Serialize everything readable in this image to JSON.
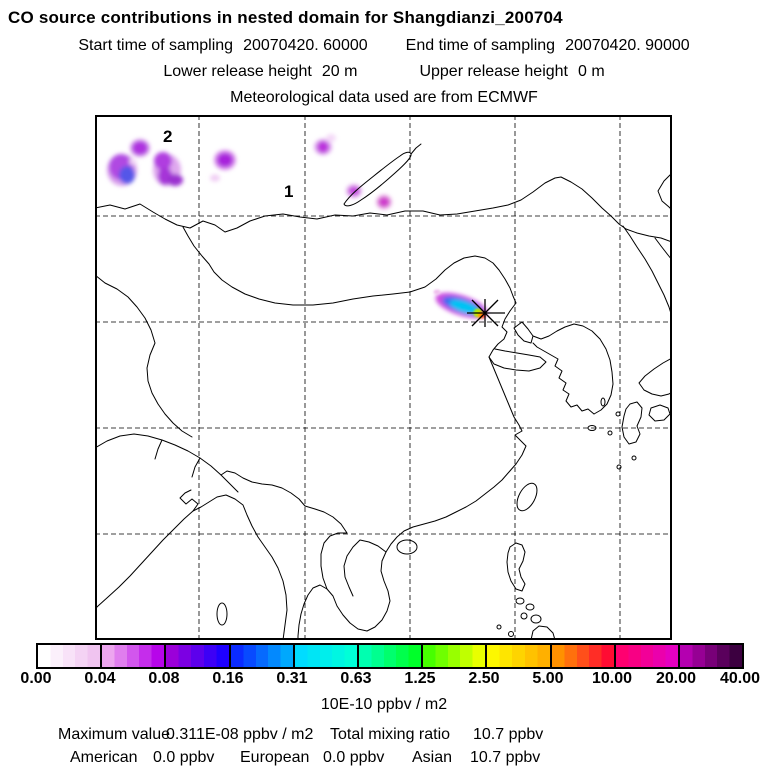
{
  "header": {
    "title": "CO  source contributions in nested domain for Shangdianzi_200704",
    "sampling": {
      "start_label": "Start time of sampling",
      "start_value": "20070420. 60000",
      "end_label": "End time of sampling",
      "end_value": "20070420. 90000"
    },
    "release": {
      "lower_label": "Lower release height",
      "lower_value": "20 m",
      "upper_label": "Upper release height",
      "upper_value": "0 m"
    },
    "met_line": "Meteorological data used are from ECMWF"
  },
  "map": {
    "region_labels": [
      {
        "text": "2"
      },
      {
        "text": "1"
      }
    ]
  },
  "chart_data": {
    "type": "heatmap",
    "title": "CO source contributions in nested domain for Shangdianzi_200704",
    "units": "10E-10 ppbv / m2",
    "levels": [
      0.0,
      0.04,
      0.08,
      0.16,
      0.31,
      0.63,
      1.25,
      2.5,
      5.0,
      10.0,
      20.0,
      40.0
    ],
    "tick_labels": [
      "0.00",
      "0.04",
      "0.08",
      "0.16",
      "0.31",
      "0.63",
      "1.25",
      "2.50",
      "5.00",
      "10.00",
      "20.00",
      "40.00"
    ],
    "segment_colors": [
      [
        "#ffffff",
        "#f0c4f0"
      ],
      [
        "#eda6ef",
        "#b705ea"
      ],
      [
        "#9b00d9",
        "#1e00ff"
      ],
      [
        "#0b2bff",
        "#00a8fd"
      ],
      [
        "#00dcff",
        "#00ffd8"
      ],
      [
        "#00ffb0",
        "#00ff2a"
      ],
      [
        "#47ff00",
        "#e8ff00"
      ],
      [
        "#fdf700",
        "#ffb000"
      ],
      [
        "#ff9100",
        "#ff0c33"
      ],
      [
        "#ff0070",
        "#e400c0"
      ],
      [
        "#b400b0",
        "#3c0040"
      ]
    ],
    "legend_position": "bottom",
    "grid": true,
    "annotations": {
      "receptor_marker": "asterisk at Shangdianzi receptor",
      "source_region_labels": [
        "1",
        "2"
      ]
    },
    "maximum_value": "0.311E-08 ppbv / m2",
    "total_mixing_ratio": "10.7 ppbv",
    "contributions": [
      {
        "region": "American",
        "value": "0.0 ppbv"
      },
      {
        "region": "European",
        "value": "0.0 ppbv"
      },
      {
        "region": "Asian",
        "value": "10.7 ppbv"
      }
    ]
  },
  "colorbar": {
    "unit_label": "10E-10 ppbv / m2"
  },
  "footer": {
    "maximum_label": "Maximum value",
    "maximum_value": "0.311E-08 ppbv / m2",
    "total_label": "Total mixing ratio",
    "total_value": "10.7 ppbv"
  }
}
